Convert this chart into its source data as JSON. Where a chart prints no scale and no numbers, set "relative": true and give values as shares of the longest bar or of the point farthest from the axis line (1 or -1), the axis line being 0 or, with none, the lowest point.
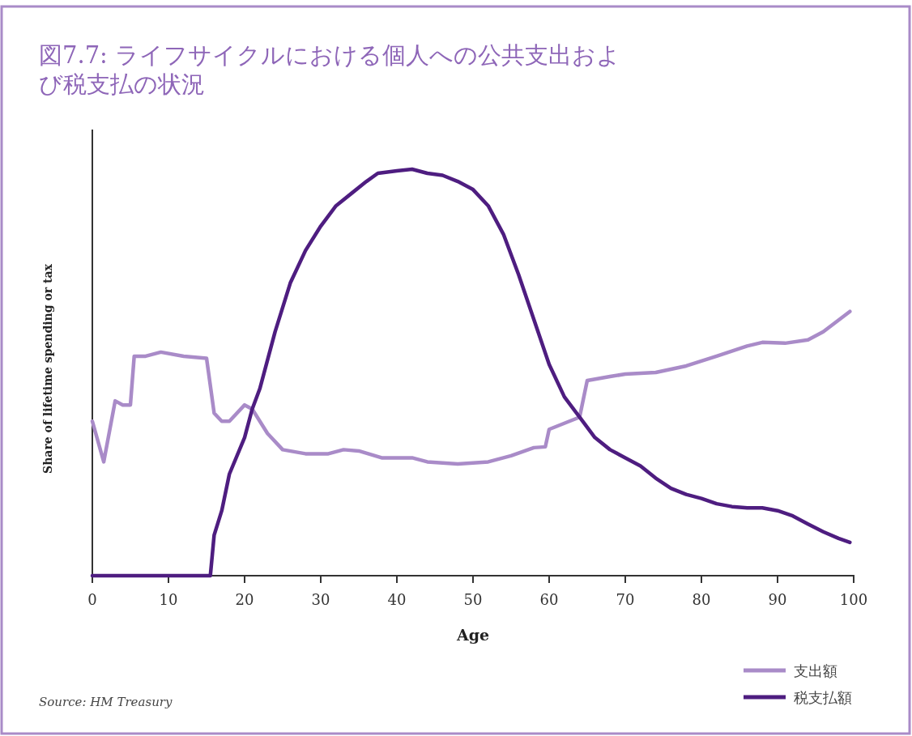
{
  "chart_data": {
    "type": "line",
    "title": "図7.7: ライフサイクルにおける個人への公共支出および税支払の状況",
    "xlabel": "Age",
    "ylabel": "Share of lifetime spending or tax",
    "relative": true,
    "xlim": [
      0,
      100
    ],
    "xticks": [
      0,
      10,
      20,
      30,
      40,
      50,
      60,
      70,
      80,
      90,
      100
    ],
    "legend": "bottom right",
    "grid": false,
    "marker": "none",
    "line_style": "solid",
    "annotations": [
      "Source: HM Treasury"
    ],
    "series": [
      {
        "name": "支出額",
        "color": "#a98bc8",
        "x": [
          0,
          1.5,
          3,
          4,
          5,
          5.5,
          7,
          9,
          12,
          15,
          16,
          17,
          18,
          20,
          21,
          23,
          25,
          28,
          31,
          33,
          35,
          38,
          42,
          44,
          48,
          52,
          55,
          58,
          59.5,
          60,
          62,
          64,
          65,
          68,
          70,
          74,
          78,
          82,
          86,
          88,
          91,
          94,
          96,
          99.5
        ],
        "values": [
          0.38,
          0.28,
          0.43,
          0.42,
          0.42,
          0.54,
          0.54,
          0.55,
          0.54,
          0.535,
          0.4,
          0.38,
          0.38,
          0.42,
          0.41,
          0.35,
          0.31,
          0.3,
          0.3,
          0.31,
          0.307,
          0.29,
          0.29,
          0.28,
          0.275,
          0.28,
          0.295,
          0.315,
          0.317,
          0.36,
          0.375,
          0.39,
          0.48,
          0.49,
          0.496,
          0.5,
          0.516,
          0.54,
          0.565,
          0.574,
          0.572,
          0.58,
          0.6,
          0.65
        ]
      },
      {
        "name": "税支払額",
        "color": "#4e1d80",
        "x": [
          0,
          15.5,
          16,
          17,
          18,
          20,
          21,
          22,
          24,
          26,
          28,
          30,
          32,
          34,
          36,
          37.5,
          40,
          42,
          44,
          46,
          48,
          50,
          52,
          54,
          56,
          58,
          60,
          62,
          64,
          66,
          68,
          70,
          72,
          74,
          76,
          78,
          80,
          82,
          84,
          86,
          88,
          90,
          92,
          94,
          96,
          98,
          99.5
        ],
        "values": [
          0,
          0,
          0.1,
          0.16,
          0.25,
          0.34,
          0.41,
          0.46,
          0.6,
          0.72,
          0.8,
          0.86,
          0.91,
          0.94,
          0.97,
          0.99,
          0.996,
          1,
          0.99,
          0.985,
          0.97,
          0.95,
          0.91,
          0.84,
          0.74,
          0.63,
          0.52,
          0.44,
          0.39,
          0.34,
          0.31,
          0.29,
          0.27,
          0.24,
          0.215,
          0.2,
          0.19,
          0.177,
          0.17,
          0.167,
          0.167,
          0.16,
          0.147,
          0.127,
          0.108,
          0.092,
          0.082
        ]
      }
    ]
  }
}
